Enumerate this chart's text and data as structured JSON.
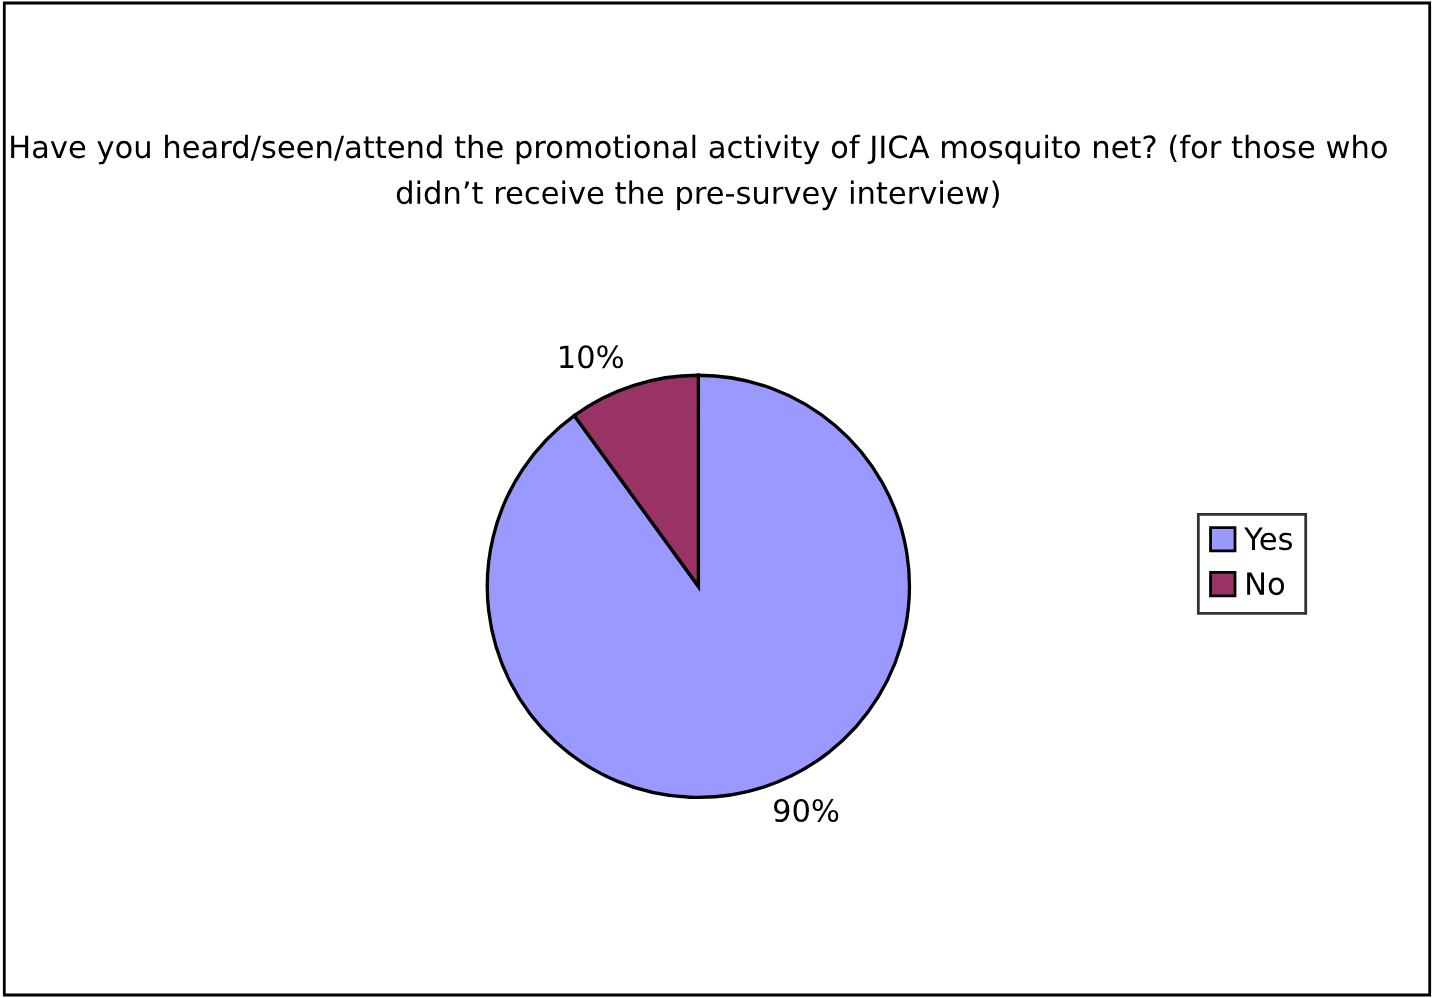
{
  "chart_data": {
    "type": "pie",
    "title": "Have you heard/seen/attend the promotional activity of JICA mosquito net? (for those who didn’t receive the pre-survey interview)",
    "categories": [
      "Yes",
      "No"
    ],
    "values": [
      90,
      10
    ],
    "colors": [
      "#9999ff",
      "#993366"
    ],
    "value_labels": [
      "90%",
      "10%"
    ],
    "legend": "right"
  }
}
